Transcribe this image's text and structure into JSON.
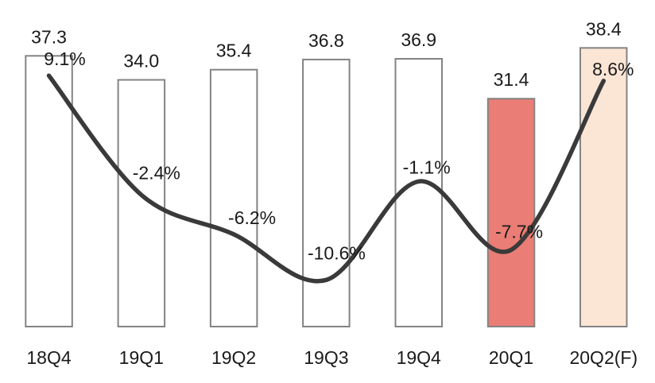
{
  "chart_data": {
    "type": "bar",
    "subtype": "bar-line-combo",
    "title": "",
    "xlabel": "",
    "ylabel": "",
    "categories": [
      "18Q4",
      "19Q1",
      "19Q2",
      "19Q3",
      "19Q4",
      "20Q1",
      "20Q2(F)"
    ],
    "series": [
      {
        "name": "quarterly-value-bars",
        "type": "bar",
        "values": [
          37.3,
          34.0,
          35.4,
          36.8,
          36.9,
          31.4,
          38.4
        ],
        "labels": [
          "37.3",
          "34.0",
          "35.4",
          "36.8",
          "36.9",
          "31.4",
          "38.4"
        ],
        "bar_fills": [
          "#ffffff",
          "#ffffff",
          "#ffffff",
          "#ffffff",
          "#ffffff",
          "#ea7d75",
          "#fbe6d5"
        ],
        "bar_stroke": "#838383"
      },
      {
        "name": "growth-rate-line",
        "type": "line",
        "values": [
          9.1,
          -2.4,
          -6.2,
          -10.6,
          -1.1,
          -7.7,
          8.6
        ],
        "labels": [
          "9.1%",
          "-2.4%",
          "-6.2%",
          "-10.6%",
          "-1.1%",
          "-7.7%",
          "8.6%"
        ],
        "color": "#3a3a3a",
        "label_offsets": [
          [
            20,
            -21
          ],
          [
            19,
            -28
          ],
          [
            23,
            -21
          ],
          [
            13,
            -34
          ],
          [
            10,
            -18
          ],
          [
            10,
            -23
          ],
          [
            12,
            -15
          ]
        ]
      }
    ],
    "ylim": [
      0,
      45
    ],
    "y2lim": [
      -15.1,
      16.4
    ],
    "grid": false,
    "legend": "none",
    "text_color": "#1a1a1a",
    "background": "#ffffff"
  }
}
